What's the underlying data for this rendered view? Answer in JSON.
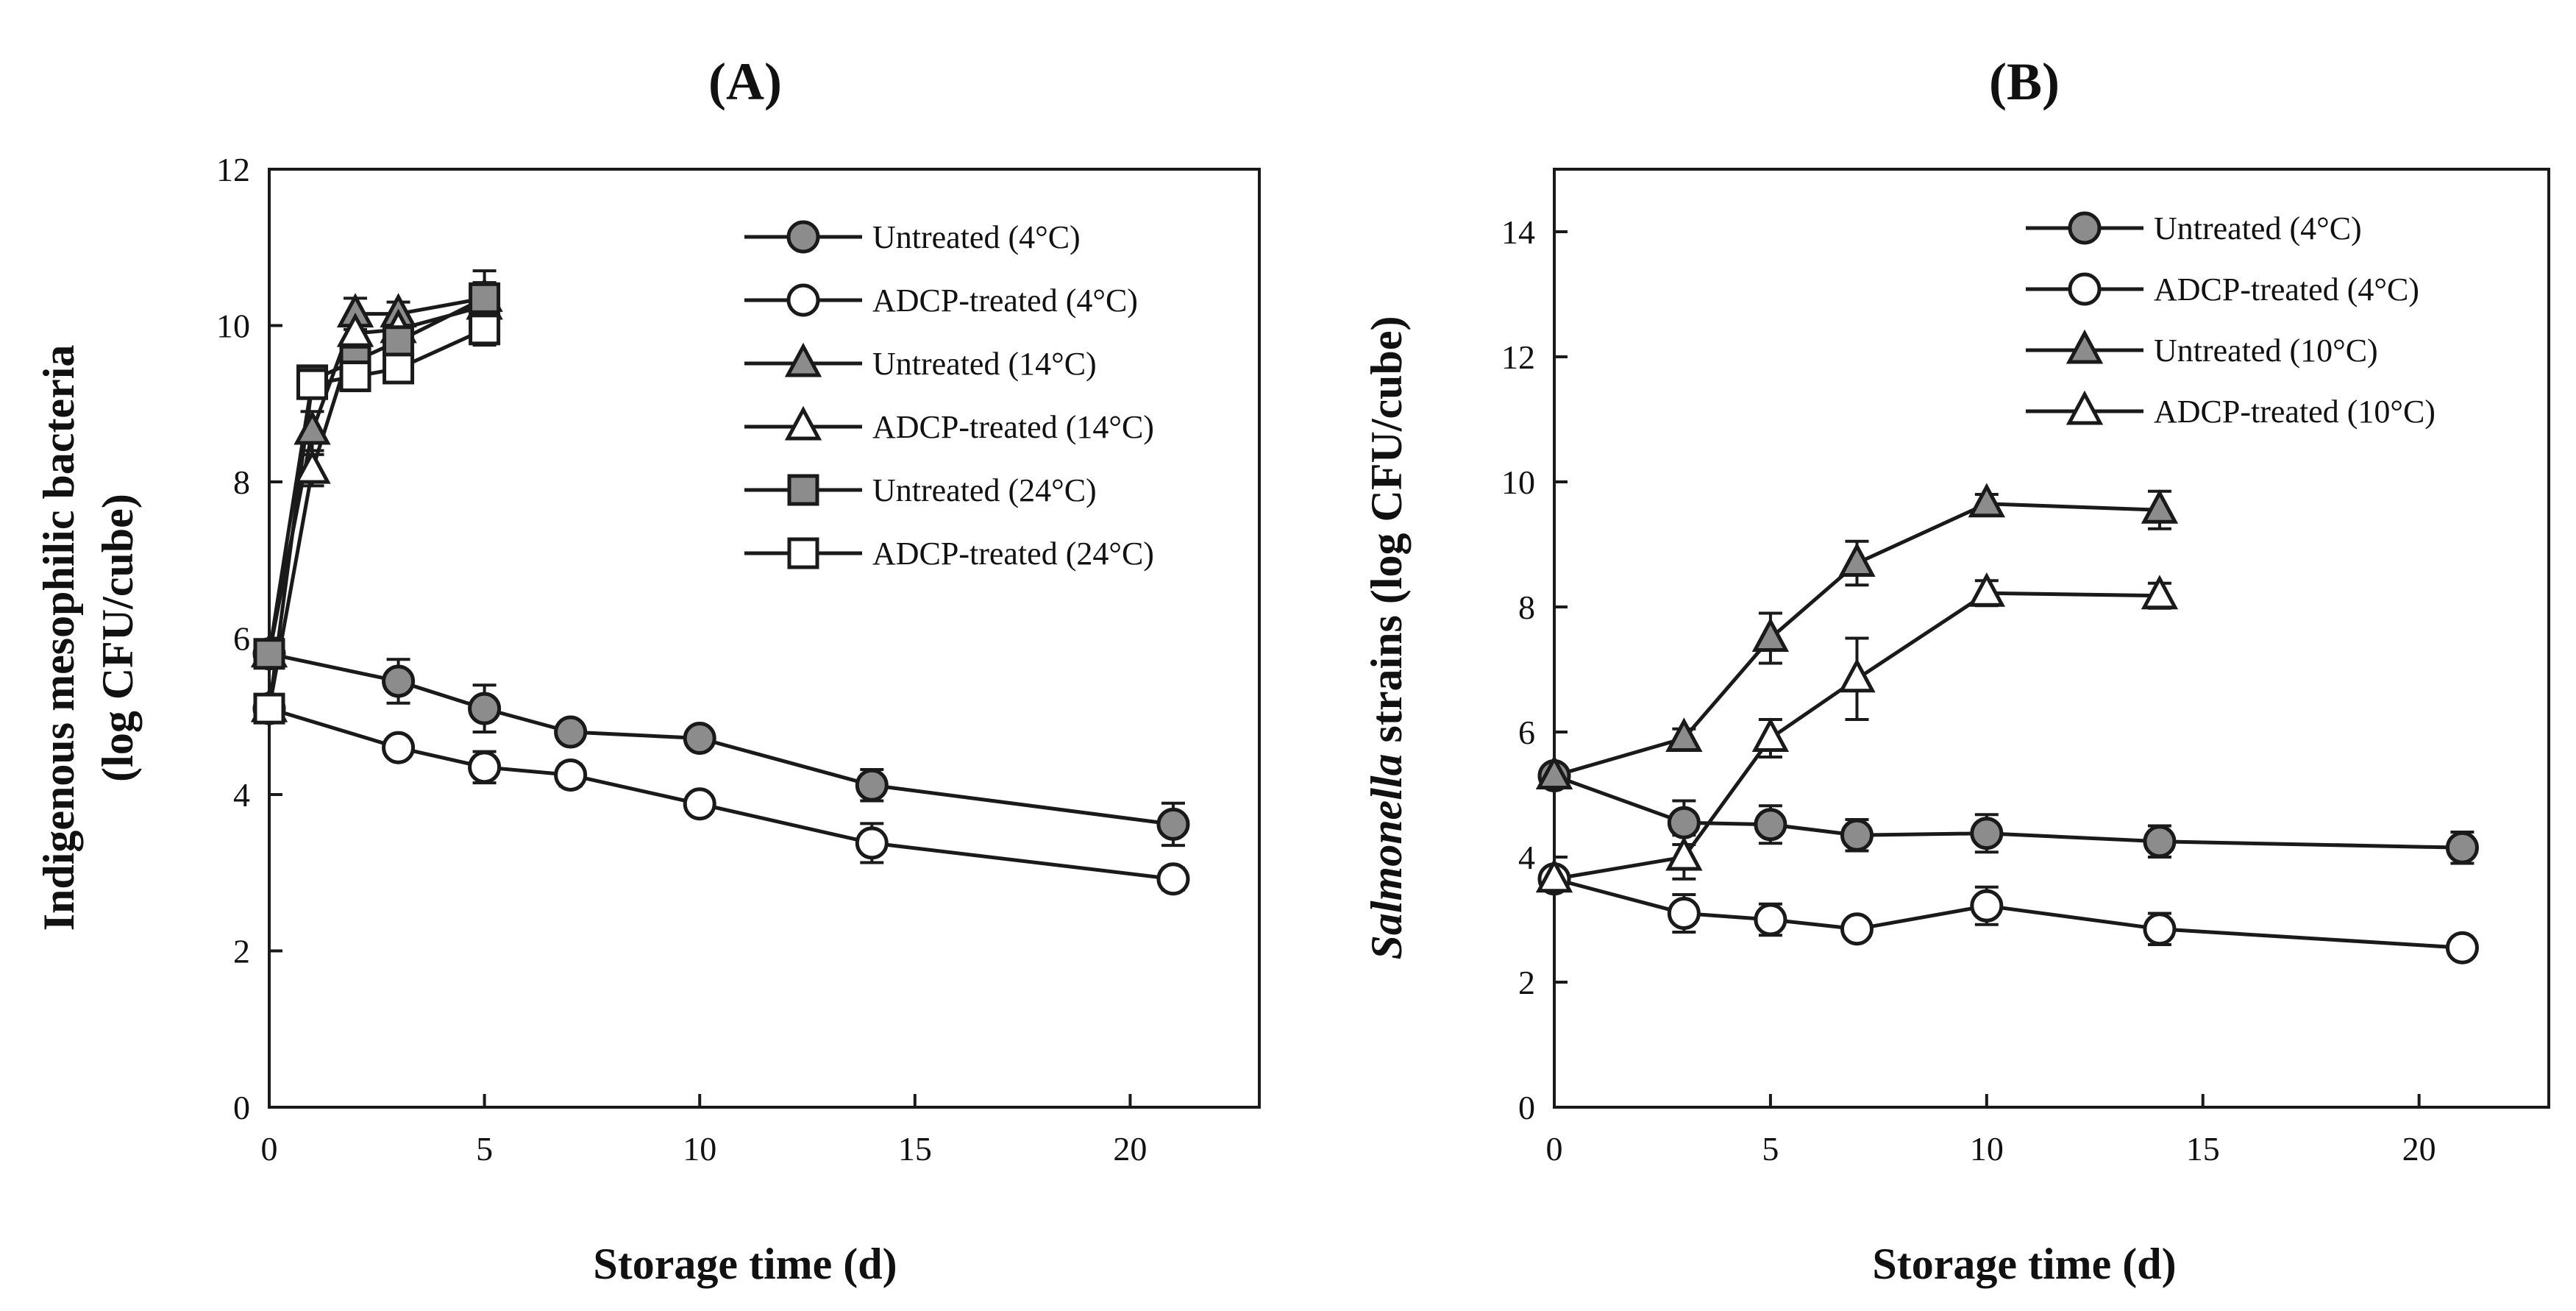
{
  "figure": {
    "colors": {
      "ink": "#1a1a1a",
      "filled": "#8c8c8c",
      "open": "#ffffff"
    }
  },
  "chart_data": [
    {
      "type": "line",
      "id": "A",
      "title": "(A)",
      "xlabel": "Storage time (d)",
      "ylabel": "Indigenous mesophilic bacteria",
      "ylabel_line2": "(log CFU/cube)",
      "xlim": [
        0,
        23
      ],
      "ylim": [
        0,
        12
      ],
      "xticks": [
        0,
        5,
        10,
        15,
        20
      ],
      "yticks": [
        0,
        2,
        4,
        6,
        8,
        10,
        12
      ],
      "legend_position": "top-right",
      "series": [
        {
          "name": "Untreated (4°C)",
          "marker": "circle",
          "filled": true,
          "x": [
            0,
            3,
            5,
            7,
            10,
            14,
            21
          ],
          "y": [
            5.8,
            5.45,
            5.1,
            4.8,
            4.72,
            4.12,
            3.62
          ],
          "err": [
            0.12,
            0.28,
            0.3,
            0.1,
            0.1,
            0.2,
            0.27
          ]
        },
        {
          "name": "ADCP-treated (4°C)",
          "marker": "circle",
          "filled": false,
          "x": [
            0,
            3,
            5,
            7,
            10,
            14,
            21
          ],
          "y": [
            5.1,
            4.6,
            4.35,
            4.25,
            3.88,
            3.38,
            2.92
          ],
          "err": [
            0.1,
            0.1,
            0.2,
            0.14,
            0.12,
            0.25,
            0.14
          ]
        },
        {
          "name": "Untreated (14°C)",
          "marker": "triangle",
          "filled": true,
          "x": [
            0,
            1,
            2,
            3,
            5
          ],
          "y": [
            5.8,
            8.65,
            10.15,
            10.15,
            10.35
          ],
          "err": [
            0.1,
            0.25,
            0.2,
            0.15,
            0.2
          ]
        },
        {
          "name": "ADCP-treated (14°C)",
          "marker": "triangle",
          "filled": false,
          "x": [
            0,
            1,
            2,
            3,
            5
          ],
          "y": [
            5.1,
            8.15,
            9.9,
            9.95,
            10.25
          ],
          "err": [
            0.1,
            0.2,
            0.2,
            0.15,
            0.15
          ]
        },
        {
          "name": "Untreated (24°C)",
          "marker": "square",
          "filled": true,
          "x": [
            0,
            1,
            2,
            3,
            5
          ],
          "y": [
            5.8,
            9.3,
            9.55,
            9.8,
            10.35
          ],
          "err": [
            0.1,
            0.15,
            0.2,
            0.25,
            0.35
          ]
        },
        {
          "name": "ADCP-treated (24°C)",
          "marker": "square",
          "filled": false,
          "x": [
            0,
            1,
            2,
            3,
            5
          ],
          "y": [
            5.1,
            9.25,
            9.35,
            9.45,
            9.95
          ],
          "err": [
            0.1,
            0.15,
            0.15,
            0.15,
            0.2
          ]
        }
      ]
    },
    {
      "type": "line",
      "id": "B",
      "title": "(B)",
      "xlabel": "Storage time (d)",
      "ylabel_italic": "Salmonella",
      "ylabel_rest": " strains (log CFU/cube)",
      "xlim": [
        0,
        23
      ],
      "ylim": [
        0,
        15
      ],
      "xticks": [
        0,
        5,
        10,
        15,
        20
      ],
      "yticks": [
        0,
        2,
        4,
        6,
        8,
        10,
        12,
        14
      ],
      "legend_position": "top-right",
      "series": [
        {
          "name": "Untreated (4°C)",
          "marker": "circle",
          "filled": true,
          "x": [
            0,
            3,
            5,
            7,
            10,
            14,
            21
          ],
          "y": [
            5.3,
            4.55,
            4.52,
            4.35,
            4.38,
            4.25,
            4.15
          ],
          "err": [
            0.12,
            0.35,
            0.3,
            0.25,
            0.3,
            0.25,
            0.25
          ]
        },
        {
          "name": "ADCP-treated (4°C)",
          "marker": "circle",
          "filled": false,
          "x": [
            0,
            3,
            5,
            7,
            10,
            14,
            21
          ],
          "y": [
            3.65,
            3.1,
            3.0,
            2.85,
            3.22,
            2.85,
            2.55
          ],
          "err": [
            0.1,
            0.3,
            0.25,
            0.15,
            0.3,
            0.25,
            0.1
          ]
        },
        {
          "name": "Untreated (10°C)",
          "marker": "triangle",
          "filled": true,
          "x": [
            0,
            3,
            5,
            7,
            10,
            14
          ],
          "y": [
            5.3,
            5.9,
            7.5,
            8.7,
            9.65,
            9.55
          ],
          "err": [
            0.12,
            0.15,
            0.4,
            0.35,
            0.15,
            0.3
          ]
        },
        {
          "name": "ADCP-treated (10°C)",
          "marker": "triangle",
          "filled": false,
          "x": [
            0,
            3,
            5,
            7,
            10,
            14
          ],
          "y": [
            3.65,
            4.0,
            5.9,
            6.85,
            8.22,
            8.18
          ],
          "err": [
            0.1,
            0.35,
            0.3,
            0.65,
            0.2,
            0.2
          ]
        }
      ]
    }
  ]
}
